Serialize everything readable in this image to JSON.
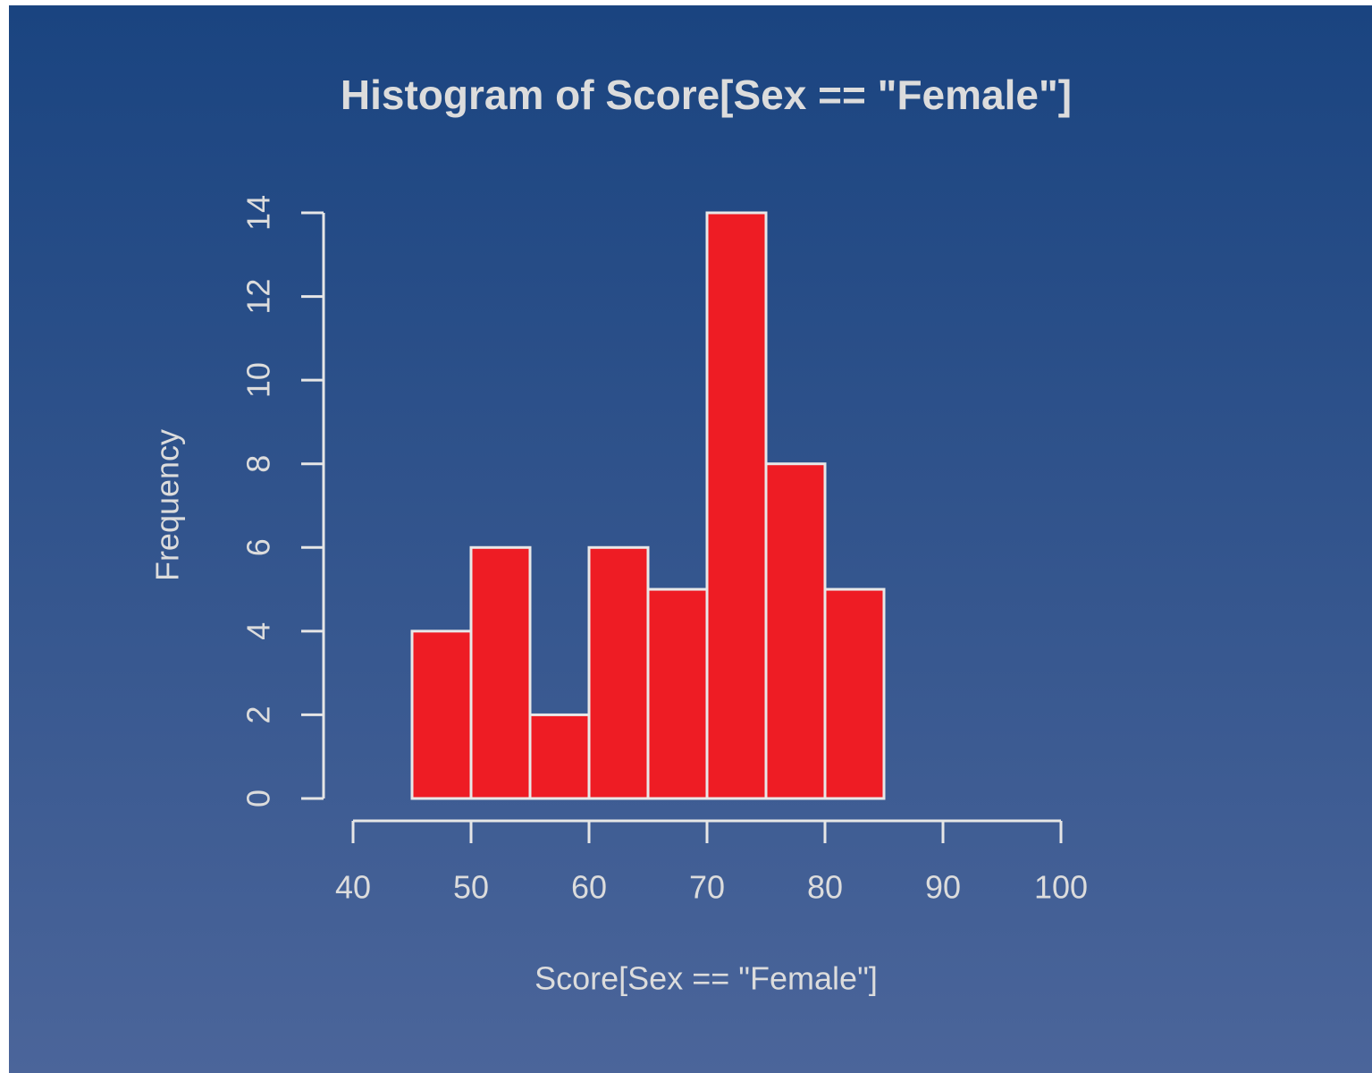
{
  "chart_data": {
    "type": "histogram",
    "title": "Histogram of Score[Sex == \"Female\"]",
    "x_label": "Score[Sex == \"Female\"]",
    "y_label": "Frequency",
    "bins": [
      45,
      50,
      55,
      60,
      65,
      70,
      75,
      80,
      85
    ],
    "values": [
      4,
      6,
      2,
      6,
      5,
      14,
      8,
      5
    ],
    "color": "#ee1c24",
    "xlim": [
      40,
      100
    ],
    "xticks": [
      40,
      50,
      60,
      70,
      80,
      90,
      100
    ],
    "ylim": [
      0,
      14
    ],
    "yticks": [
      0,
      2,
      4,
      6,
      8,
      10,
      12,
      14
    ]
  }
}
